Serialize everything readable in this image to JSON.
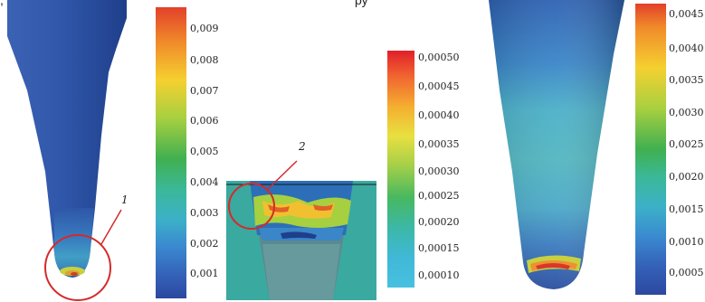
{
  "header_fragment_left": ", р",
  "header_fragment_mid": "ру",
  "colorbar_left": {
    "ticks": [
      "0,009",
      "0,008",
      "0,007",
      "0,006",
      "0,005",
      "0,004",
      "0,003",
      "0,002",
      "0,001"
    ],
    "min": 0.0006,
    "max": 0.0097
  },
  "colorbar_mid": {
    "ticks": [
      "0,00050",
      "0,00045",
      "0,00040",
      "0,00035",
      "0,00030",
      "0,00025",
      "0,00020",
      "0,00015",
      "0,00010"
    ],
    "min": 8e-05,
    "max": 0.00052
  },
  "colorbar_right": {
    "ticks": [
      "0,0045",
      "0,0040",
      "0,0035",
      "0,0030",
      "0,0025",
      "0,0020",
      "0,0015",
      "0,0010",
      "0,0005"
    ],
    "min": 0.0003,
    "max": 0.0046
  },
  "annotations": {
    "label_1": "1",
    "label_2": "2"
  },
  "colors": {
    "annotation_red": "#d42a2a",
    "mesh_blue": "#2f57a8",
    "inset_bg": "#3aa9a0"
  }
}
